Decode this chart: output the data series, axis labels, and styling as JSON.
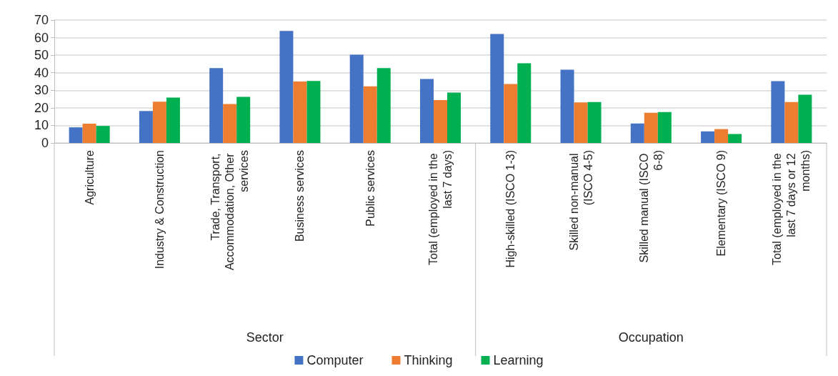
{
  "chart_data": {
    "type": "bar",
    "categories": [
      "Agriculture",
      "Industry & Construction",
      "Trade, Transport, Accommodation, Other services",
      "Business services",
      "Public services",
      "Total (employed in the last 7 days)",
      "High-skilled (ISCO 1-3)",
      "Skilled non-manual (ISCO 4-5)",
      "Skilled manual (ISCO 6-8)",
      "Elementary (ISCO 9)",
      "Total (employed in the last 7 days or 12 months)"
    ],
    "series": [
      {
        "name": "Computer",
        "color": "#4472c4",
        "values": [
          8.9,
          18.2,
          42.6,
          63.8,
          50.3,
          36.4,
          62.1,
          41.7,
          11.1,
          6.6,
          35.2
        ]
      },
      {
        "name": "Thinking",
        "color": "#ed7d31",
        "values": [
          11,
          23.5,
          22.2,
          35,
          32.3,
          24.4,
          33.6,
          23.1,
          17.2,
          7.9,
          23.3
        ]
      },
      {
        "name": "Learning",
        "color": "#00b050",
        "values": [
          9.7,
          25.8,
          26.2,
          35.3,
          42.6,
          28.7,
          45.4,
          23.3,
          17.6,
          5.1,
          27.5
        ]
      }
    ],
    "annotations": [
      "Sector",
      "Occupation"
    ],
    "ylim": [
      0,
      70
    ],
    "yticks": [
      0,
      10,
      20,
      30,
      40,
      50,
      60,
      70
    ],
    "grid": "y",
    "legend": "bottom"
  }
}
